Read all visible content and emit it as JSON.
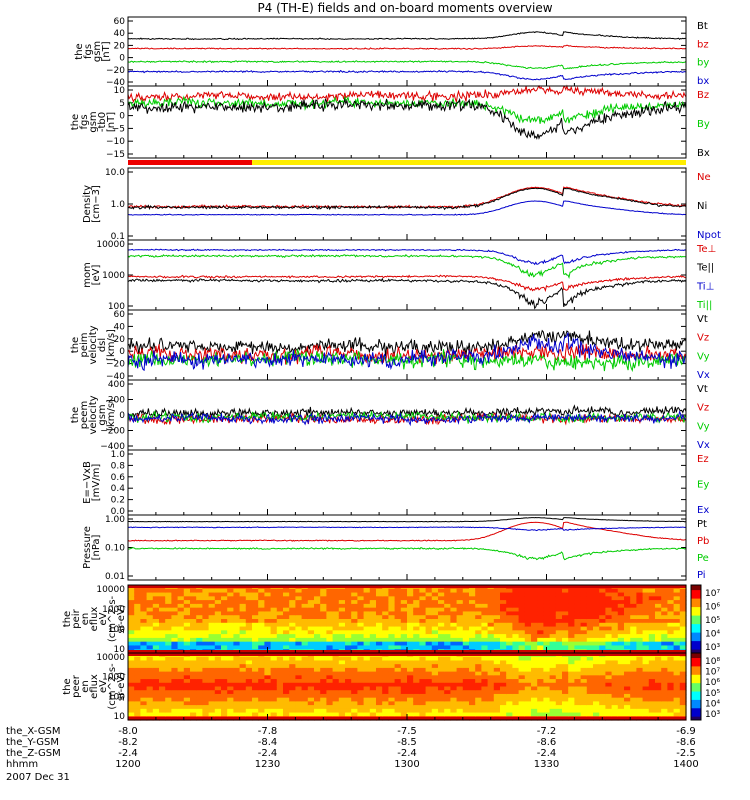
{
  "chart_data": {
    "type": "line",
    "title": "P4 (TH-E) fields and on-board moments overview",
    "time_axis": {
      "ticks": [
        "1200",
        "1230",
        "1300",
        "1330",
        "1400"
      ],
      "rows": [
        {
          "label": "the_X-GSM",
          "values": [
            "-8.0",
            "-7.8",
            "-7.5",
            "-7.2",
            "-6.9"
          ]
        },
        {
          "label": "the_Y-GSM",
          "values": [
            "-8.2",
            "-8.4",
            "-8.5",
            "-8.6",
            "-8.6"
          ]
        },
        {
          "label": "the_Z-GSM",
          "values": [
            "-2.4",
            "-2.4",
            "-2.4",
            "-2.4",
            "-2.5"
          ]
        },
        {
          "label": "hhmm",
          "values": [
            "1200",
            "1230",
            "1300",
            "1330",
            "1400"
          ]
        }
      ],
      "date": "2007 Dec 31"
    },
    "panels": [
      {
        "ylabel": [
          "the",
          "fgs",
          "gsm",
          "[nT]"
        ],
        "ytick_labels": [
          "60",
          "40",
          "20",
          "0",
          "−20",
          "−40"
        ],
        "ylim": [
          -40,
          65
        ],
        "series": [
          {
            "name": "Bt",
            "color": "#000000",
            "base": 32,
            "noise": 0.6,
            "event": 10
          },
          {
            "name": "bz",
            "color": "#dd0000",
            "base": 17,
            "noise": 0.6,
            "event": 4
          },
          {
            "name": "by",
            "color": "#00cc00",
            "base": -3,
            "noise": 0.8,
            "event": -10
          },
          {
            "name": "bx",
            "color": "#0000cc",
            "base": -18,
            "noise": 0.8,
            "event": -12
          }
        ]
      },
      {
        "ylabel": [
          "the",
          "fgs",
          "gsm",
          "-tb0",
          "[nT]"
        ],
        "ytick_labels": [
          "10",
          "5",
          "0",
          "−5",
          "−10",
          "−15"
        ],
        "ylim": [
          -18,
          11
        ],
        "series": [
          {
            "name": "Bz",
            "color": "#dd0000",
            "base": 7,
            "noise": 1.2,
            "event": 3
          },
          {
            "name": "By",
            "color": "#00cc00",
            "base": 4,
            "noise": 1.2,
            "event": -7
          },
          {
            "name": "Bx",
            "color": "#000000",
            "base": 3,
            "noise": 1.5,
            "event": -12
          }
        ]
      },
      {
        "ylabel": [
          "Density",
          "[cm−3]"
        ],
        "ytick_labels": [
          "10.0",
          "1.0",
          "0.1"
        ],
        "ylim": [
          0.1,
          10
        ],
        "log": true,
        "series": [
          {
            "name": "Ne",
            "color": "#dd0000",
            "base": 0.85,
            "noise": 0.05,
            "event": 2.0
          },
          {
            "name": "Ni",
            "color": "#000000",
            "base": 0.8,
            "noise": 0.05,
            "event": 1.9
          },
          {
            "name": "Npot",
            "color": "#0000cc",
            "base": 0.5,
            "noise": 0.01,
            "event": 0.7
          }
        ]
      },
      {
        "ylabel": [
          "mom",
          "[eV]"
        ],
        "ytick_labels": [
          "10000",
          "1000",
          "100"
        ],
        "ylim": [
          100,
          10000
        ],
        "log": true,
        "series": [
          {
            "name": "Te⊥",
            "color": "#dd0000",
            "base": 900,
            "noise": 40,
            "event": -500
          },
          {
            "name": "Te||",
            "color": "#000000",
            "base": 700,
            "noise": 40,
            "event": -550
          },
          {
            "name": "Ti⊥",
            "color": "#0000cc",
            "base": 5200,
            "noise": 150,
            "event": -3000
          },
          {
            "name": "Ti||",
            "color": "#00cc00",
            "base": 3500,
            "noise": 150,
            "event": -2500
          }
        ]
      },
      {
        "ylabel": [
          "the",
          "peim",
          "velocity",
          "dsl",
          "[km/s]"
        ],
        "ytick_labels": [
          "60",
          "40",
          "20",
          "0",
          "−20",
          "−40"
        ],
        "ylim": [
          -45,
          85
        ],
        "series": [
          {
            "name": "Vt",
            "color": "#000000",
            "base": 18,
            "noise": 9,
            "event": 20
          },
          {
            "name": "Vz",
            "color": "#dd0000",
            "base": 3,
            "noise": 10,
            "event": 5
          },
          {
            "name": "Vy",
            "color": "#00cc00",
            "base": -8,
            "noise": 10,
            "event": 0
          },
          {
            "name": "Vx",
            "color": "#0000cc",
            "base": -6,
            "noise": 10,
            "event": 25
          }
        ]
      },
      {
        "ylabel": [
          "the",
          "peem",
          "velocity",
          "gsm",
          "[km/s]"
        ],
        "ytick_labels": [
          "400",
          "200",
          "0",
          "−200",
          "−400"
        ],
        "ylim": [
          -420,
          500
        ],
        "series": [
          {
            "name": "Vt",
            "color": "#000000",
            "base": 60,
            "noise": 40,
            "event": 40
          },
          {
            "name": "Vz",
            "color": "#dd0000",
            "base": -20,
            "noise": 40,
            "event": 0
          },
          {
            "name": "Vy",
            "color": "#00cc00",
            "base": 10,
            "noise": 40,
            "event": 0
          },
          {
            "name": "Vx",
            "color": "#0000cc",
            "base": 0,
            "noise": 40,
            "event": 0
          }
        ]
      },
      {
        "ylabel": [
          "E=−VxB",
          "[mV/m]"
        ],
        "ytick_labels": [
          "1.0",
          "0.8",
          "0.6",
          "0.4",
          "0.2",
          "0.0"
        ],
        "ylim": [
          0,
          1
        ],
        "series": [
          {
            "name": "Ez",
            "color": "#dd0000"
          },
          {
            "name": "Ey",
            "color": "#00cc00"
          },
          {
            "name": "Ex",
            "color": "#0000cc"
          }
        ]
      },
      {
        "ylabel": [
          "Pressure",
          "[nPa]"
        ],
        "ytick_labels": [
          "1.00",
          "0.10",
          "0.01"
        ],
        "ylim": [
          0.01,
          1.4
        ],
        "log": true,
        "series": [
          {
            "name": "Pt",
            "color": "#000000",
            "base": 0.85,
            "noise": 0.01,
            "event": 0.3
          },
          {
            "name": "Pb",
            "color": "#dd0000",
            "base": 0.2,
            "noise": 0.005,
            "event": 0.6
          },
          {
            "name": "Pe",
            "color": "#00cc00",
            "base": 0.11,
            "noise": 0.004,
            "event": -0.06
          },
          {
            "name": "Pi",
            "color": "#0000cc",
            "base": 0.55,
            "noise": 0.01,
            "event": -0.1
          }
        ]
      },
      {
        "type": "heatmap",
        "ylabel": [
          "the",
          "peir",
          "en",
          "eflux",
          "eV",
          "(cm^2-s-",
          "sr-eV)"
        ],
        "ytick_labels": [
          "10000",
          "1000",
          "100",
          "10"
        ],
        "colorbar_labels": [
          "10⁷",
          "10⁶",
          "10⁵",
          "10⁴",
          "10³"
        ]
      },
      {
        "type": "heatmap",
        "ylabel": [
          "the",
          "peer",
          "en",
          "eflux",
          "eV",
          "(cm^2-s-",
          "sr-eV)"
        ],
        "ytick_labels": [
          "10000",
          "1000",
          "100",
          "10"
        ],
        "colorbar_labels": [
          "10⁸",
          "10⁷",
          "10⁶",
          "10⁵",
          "10⁴",
          "10³"
        ]
      }
    ]
  }
}
